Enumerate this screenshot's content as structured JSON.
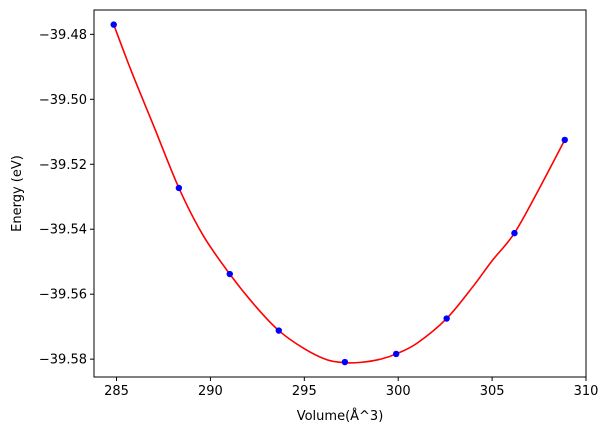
{
  "chart_data": {
    "type": "scatter",
    "xlabel": "Volume(Å^3)",
    "ylabel": "Energy (eV)",
    "xlim": [
      283.8,
      310
    ],
    "ylim": [
      -39.5855,
      -39.4725
    ],
    "x_ticks": [
      285,
      290,
      295,
      300,
      305,
      310
    ],
    "x_tick_labels": [
      "285",
      "290",
      "295",
      "300",
      "305",
      "310"
    ],
    "y_ticks": [
      -39.58,
      -39.56,
      -39.54,
      -39.52,
      -39.5,
      -39.48
    ],
    "y_tick_labels": [
      "−39.58",
      "−39.56",
      "−39.54",
      "−39.52",
      "−39.50",
      "−39.48"
    ],
    "grid": false,
    "series": [
      {
        "kind": "points",
        "color": "#0000ff",
        "x": [
          284.85,
          288.32,
          291.03,
          293.64,
          297.16,
          299.89,
          302.58,
          306.19,
          308.87
        ],
        "y": [
          -39.477,
          -39.5273,
          -39.5538,
          -39.5712,
          -39.5809,
          -39.5784,
          -39.5675,
          -39.5412,
          -39.5125
        ]
      },
      {
        "kind": "fit-curve",
        "color": "#ff0000",
        "x": [
          284.85,
          285.8,
          287.0,
          288.32,
          289.6,
          291.03,
          292.4,
          293.64,
          295.0,
          296.2,
          297.16,
          298.0,
          299.0,
          299.89,
          301.0,
          302.58,
          304.0,
          305.0,
          306.19,
          307.5,
          308.87
        ],
        "y": [
          -39.477,
          -39.4915,
          -39.5085,
          -39.5273,
          -39.5418,
          -39.5538,
          -39.5637,
          -39.5712,
          -39.5768,
          -39.5802,
          -39.5811,
          -39.581,
          -39.5801,
          -39.5784,
          -39.5751,
          -39.5675,
          -39.5575,
          -39.5497,
          -39.5412,
          -39.5276,
          -39.5125
        ]
      }
    ]
  }
}
